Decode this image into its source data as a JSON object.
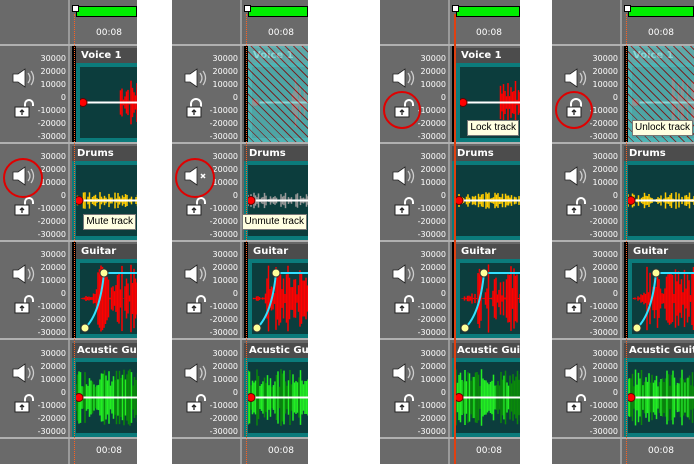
{
  "time_label": "00:08",
  "axis_labels": [
    "30000",
    "20000",
    "10000",
    "0",
    "-10000",
    "-20000",
    "-30000"
  ],
  "tracks": [
    {
      "name": "Voice 1",
      "wave_color": "#ff0000"
    },
    {
      "name": "Drums",
      "wave_color": "#ffcc00"
    },
    {
      "name": "Guitar",
      "wave_color": "#ff0000"
    },
    {
      "name": "Acustic Guitar",
      "wave_color": "#22ee22"
    }
  ],
  "panels": [
    {
      "tooltip": "Mute track",
      "highlight": "mute",
      "drums_muted": false,
      "voice_locked": false
    },
    {
      "tooltip": "Unmute track",
      "highlight": "mute",
      "drums_muted": true,
      "voice_locked": true
    },
    {
      "tooltip": "Lock track",
      "highlight": "lock",
      "drums_muted": false,
      "voice_locked": false
    },
    {
      "tooltip": "Unlock track",
      "highlight": "lock",
      "drums_muted": false,
      "voice_locked": true
    }
  ],
  "colors": {
    "accent_circle": "#e00000",
    "clip_border": "#0b7b7b",
    "timeline_bar": "#00ee00",
    "tooltip_bg": "#ffffe1"
  }
}
